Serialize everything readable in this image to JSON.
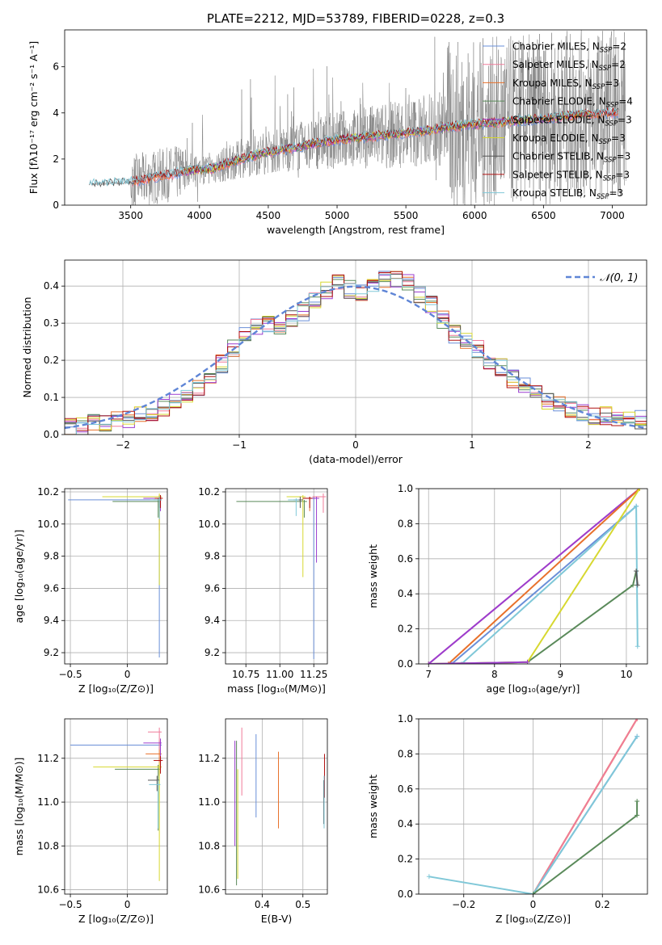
{
  "figure": {
    "title": "PLATE=2212, MJD=53789, FIBERID=0228, z=0.3"
  },
  "colors": [
    "#6a8fd8",
    "#f07b9a",
    "#e8702a",
    "#5a8a5a",
    "#9b3dcf",
    "#d7d830",
    "#555555",
    "#b01010",
    "#80c8d8"
  ],
  "chart_data": [
    {
      "id": "spectrum",
      "type": "line",
      "xlabel": "wavelength [Angstrom, rest frame]",
      "ylabel": "Flux [fλ10⁻¹⁷ erg cm⁻² s⁻¹ A⁻¹]",
      "xlim": [
        3020,
        7250
      ],
      "ylim": [
        0,
        7.6
      ],
      "xticks": [
        3500,
        4000,
        4500,
        5000,
        5500,
        6000,
        6500,
        7000
      ],
      "yticks": [
        0,
        2,
        4,
        6
      ],
      "grid": false,
      "legend_position": "top-right",
      "legend": [
        {
          "label": "Chabrier MILES, N_SSP=2",
          "color": "#6a8fd8"
        },
        {
          "label": "Salpeter MILES, N_SSP=2",
          "color": "#f07b9a"
        },
        {
          "label": "Kroupa MILES, N_SSP=3",
          "color": "#e8702a"
        },
        {
          "label": "Chabrier ELODIE, N_SSP=4",
          "color": "#5a8a5a"
        },
        {
          "label": "Salpeter ELODIE, N_SSP=3",
          "color": "#9b3dcf"
        },
        {
          "label": "Kroupa ELODIE, N_SSP=3",
          "color": "#d7d830"
        },
        {
          "label": "Chabrier STELIB, N_SSP=3",
          "color": "#555555"
        },
        {
          "label": "Salpeter STELIB, N_SSP=3",
          "color": "#b01010"
        },
        {
          "label": "Kroupa STELIB, N_SSP=3",
          "color": "#80c8d8"
        }
      ],
      "model_trend": {
        "x": [
          3200,
          3500,
          3750,
          3950,
          4100,
          4300,
          4500,
          4700,
          4900,
          5100,
          5300,
          5600,
          5900,
          6200,
          6500,
          6800,
          7000
        ],
        "y": [
          0.9,
          1.0,
          1.3,
          1.5,
          1.6,
          2.0,
          2.3,
          2.5,
          2.75,
          2.9,
          3.0,
          3.2,
          3.45,
          3.6,
          3.75,
          3.95,
          4.0
        ]
      }
    },
    {
      "id": "residuals",
      "type": "line",
      "xlabel": "(data-model)/error",
      "ylabel": "Normed distribution",
      "xlim": [
        -2.5,
        2.5
      ],
      "ylim": [
        0,
        0.47
      ],
      "xticks": [
        -2,
        -1,
        0,
        1,
        2
      ],
      "yticks": [
        0.0,
        0.1,
        0.2,
        0.3,
        0.4
      ],
      "grid": true,
      "legend_position": "top-right",
      "legend": [
        {
          "label": "𝒩(0, 1)",
          "color": "#5f85d6"
        }
      ],
      "bin_edges_start": -2.5,
      "bin_width": 0.1,
      "histogram_base": [
        0.02,
        0.02,
        0.03,
        0.03,
        0.04,
        0.04,
        0.05,
        0.06,
        0.07,
        0.09,
        0.11,
        0.13,
        0.16,
        0.19,
        0.23,
        0.27,
        0.29,
        0.3,
        0.29,
        0.31,
        0.33,
        0.36,
        0.39,
        0.41,
        0.39,
        0.38,
        0.4,
        0.42,
        0.42,
        0.41,
        0.38,
        0.35,
        0.31,
        0.27,
        0.25,
        0.23,
        0.2,
        0.18,
        0.15,
        0.13,
        0.11,
        0.09,
        0.08,
        0.07,
        0.06,
        0.05,
        0.05,
        0.04,
        0.04,
        0.04
      ],
      "normal_curve": "N(0,1)"
    },
    {
      "id": "age-vs-Z",
      "type": "scatter",
      "xlabel": "Z [log₁₀(Z/Z⊙)]",
      "ylabel": "age  [log₁₀(age/yr)]",
      "xlim": [
        -0.55,
        0.35
      ],
      "ylim": [
        9.13,
        10.22
      ],
      "xticks": [
        -0.5,
        0.0
      ],
      "yticks": [
        9.2,
        9.4,
        9.6,
        9.8,
        10.0,
        10.2
      ],
      "grid": true,
      "points": [
        {
          "x": 0.28,
          "y": 10.15,
          "xerr": [
            0.8,
            0.02
          ],
          "yerr": [
            0.98,
            0.02
          ],
          "color": "#6a8fd8"
        },
        {
          "x": 0.28,
          "y": 10.17,
          "xerr": [
            0.1,
            0.02
          ],
          "yerr": [
            0.05,
            0.01
          ],
          "color": "#f07b9a"
        },
        {
          "x": 0.28,
          "y": 10.16,
          "xerr": [
            0.12,
            0.02
          ],
          "yerr": [
            0.2,
            0.02
          ],
          "color": "#e8702a"
        },
        {
          "x": 0.27,
          "y": 10.14,
          "xerr": [
            0.4,
            0.02
          ],
          "yerr": [
            0.1,
            0.02
          ],
          "color": "#5a8a5a"
        },
        {
          "x": 0.29,
          "y": 10.16,
          "xerr": [
            0.15,
            0.01
          ],
          "yerr": [
            0.08,
            0.01
          ],
          "color": "#9b3dcf"
        },
        {
          "x": 0.28,
          "y": 10.17,
          "xerr": [
            0.5,
            0.02
          ],
          "yerr": [
            0.55,
            0.02
          ],
          "color": "#d7d830"
        },
        {
          "x": 0.28,
          "y": 10.15,
          "xerr": [
            0.05,
            0.02
          ],
          "yerr": [
            0.05,
            0.02
          ],
          "color": "#555555"
        },
        {
          "x": 0.29,
          "y": 10.16,
          "xerr": [
            0.05,
            0.02
          ],
          "yerr": [
            0.06,
            0.02
          ],
          "color": "#b01010"
        },
        {
          "x": 0.28,
          "y": 10.15,
          "xerr": [
            0.08,
            0.02
          ],
          "yerr": [
            0.12,
            0.02
          ],
          "color": "#80c8d8"
        }
      ]
    },
    {
      "id": "age-vs-mass",
      "type": "scatter",
      "xlabel": "mass [log₁₀(M/M⊙)]",
      "ylabel": "",
      "xlim": [
        10.6,
        11.35
      ],
      "ylim": [
        9.13,
        10.22
      ],
      "xticks": [
        10.75,
        11.0,
        11.25
      ],
      "xticklabels": [
        "10.75",
        "11.00",
        "11.25"
      ],
      "yticks": [
        9.2,
        9.4,
        9.6,
        9.8,
        10.0,
        10.2
      ],
      "grid": true,
      "points": [
        {
          "x": 11.25,
          "y": 10.16,
          "xerr": [
            0.02,
            0.01
          ],
          "yerr": [
            1.0,
            0.01
          ],
          "color": "#6a8fd8"
        },
        {
          "x": 11.32,
          "y": 10.17,
          "xerr": [
            0.08,
            0.02
          ],
          "yerr": [
            0.1,
            0.02
          ],
          "color": "#f07b9a"
        },
        {
          "x": 11.22,
          "y": 10.16,
          "xerr": [
            0.05,
            0.02
          ],
          "yerr": [
            0.08,
            0.01
          ],
          "color": "#e8702a"
        },
        {
          "x": 11.18,
          "y": 10.14,
          "xerr": [
            0.5,
            0.02
          ],
          "yerr": [
            0.1,
            0.01
          ],
          "color": "#5a8a5a"
        },
        {
          "x": 11.27,
          "y": 10.16,
          "xerr": [
            0.1,
            0.02
          ],
          "yerr": [
            0.4,
            0.01
          ],
          "color": "#9b3dcf"
        },
        {
          "x": 11.17,
          "y": 10.17,
          "xerr": [
            0.12,
            0.02
          ],
          "yerr": [
            0.5,
            0.01
          ],
          "color": "#d7d830"
        },
        {
          "x": 11.15,
          "y": 10.15,
          "xerr": [
            0.05,
            0.02
          ],
          "yerr": [
            0.05,
            0.02
          ],
          "color": "#555555"
        },
        {
          "x": 11.22,
          "y": 10.16,
          "xerr": [
            0.05,
            0.02
          ],
          "yerr": [
            0.06,
            0.01
          ],
          "color": "#b01010"
        },
        {
          "x": 11.12,
          "y": 10.15,
          "xerr": [
            0.06,
            0.02
          ],
          "yerr": [
            0.1,
            0.01
          ],
          "color": "#80c8d8"
        }
      ]
    },
    {
      "id": "cumulative-weight-vs-age",
      "type": "line",
      "xlabel": "age  [log₁₀(age/yr)]",
      "ylabel": "mass weight",
      "xlim": [
        6.85,
        10.32
      ],
      "ylim": [
        0,
        1.0
      ],
      "xticks": [
        7,
        8,
        9,
        10
      ],
      "yticks": [
        0.0,
        0.2,
        0.4,
        0.6,
        0.8,
        1.0
      ],
      "grid": true,
      "series": [
        {
          "color": "#f07b9a",
          "x": [
            7.0,
            10.2
          ],
          "y": [
            0.0,
            1.0
          ]
        },
        {
          "color": "#9b3dcf",
          "x": [
            7.0,
            10.2
          ],
          "y": [
            0.0,
            1.0
          ]
        },
        {
          "color": "#e8702a",
          "x": [
            7.3,
            10.2
          ],
          "y": [
            0.0,
            1.0
          ]
        },
        {
          "color": "#6a8fd8",
          "x": [
            7.35,
            10.15
          ],
          "y": [
            0.0,
            0.9
          ]
        },
        {
          "color": "#80c8d8",
          "x": [
            7.5,
            10.15,
            10.17
          ],
          "y": [
            0.0,
            0.9,
            0.1
          ]
        },
        {
          "color": "#5a8a5a",
          "x": [
            7.0,
            8.5,
            10.1,
            10.15
          ],
          "y": [
            0.0,
            0.01,
            0.45,
            0.53
          ]
        },
        {
          "color": "#d7d830",
          "x": [
            7.0,
            8.5,
            10.2
          ],
          "y": [
            0.0,
            0.01,
            1.0
          ]
        },
        {
          "color": "#9b3dcf",
          "x": [
            7.0,
            8.5
          ],
          "y": [
            0.0,
            0.01
          ]
        },
        {
          "color": "#555555",
          "x": [
            10.15,
            10.17
          ],
          "y": [
            0.53,
            0.45
          ]
        }
      ]
    },
    {
      "id": "mass-vs-Z",
      "type": "scatter",
      "xlabel": "Z [log₁₀(Z/Z⊙)]",
      "ylabel": "mass [log₁₀(M/M⊙)]",
      "xlim": [
        -0.55,
        0.35
      ],
      "ylim": [
        10.58,
        11.38
      ],
      "xticks": [
        -0.5,
        0.0
      ],
      "yticks": [
        10.6,
        10.8,
        11.0,
        11.2
      ],
      "grid": true,
      "points": [
        {
          "x": 0.28,
          "y": 11.26,
          "xerr": [
            0.78,
            0.02
          ],
          "yerr": [
            0.02,
            0.02
          ],
          "color": "#6a8fd8"
        },
        {
          "x": 0.28,
          "y": 11.32,
          "xerr": [
            0.1,
            0.02
          ],
          "yerr": [
            0.08,
            0.02
          ],
          "color": "#f07b9a"
        },
        {
          "x": 0.28,
          "y": 11.22,
          "xerr": [
            0.12,
            0.02
          ],
          "yerr": [
            0.1,
            0.02
          ],
          "color": "#e8702a"
        },
        {
          "x": 0.27,
          "y": 11.15,
          "xerr": [
            0.38,
            0.02
          ],
          "yerr": [
            0.28,
            0.02
          ],
          "color": "#5a8a5a"
        },
        {
          "x": 0.29,
          "y": 11.27,
          "xerr": [
            0.15,
            0.01
          ],
          "yerr": [
            0.12,
            0.02
          ],
          "color": "#9b3dcf"
        },
        {
          "x": 0.28,
          "y": 11.16,
          "xerr": [
            0.58,
            0.02
          ],
          "yerr": [
            0.52,
            0.02
          ],
          "color": "#d7d830"
        },
        {
          "x": 0.26,
          "y": 11.1,
          "xerr": [
            0.08,
            0.02
          ],
          "yerr": [
            0.05,
            0.02
          ],
          "color": "#555555"
        },
        {
          "x": 0.29,
          "y": 11.19,
          "xerr": [
            0.06,
            0.02
          ],
          "yerr": [
            0.06,
            0.02
          ],
          "color": "#b01010"
        },
        {
          "x": 0.27,
          "y": 11.08,
          "xerr": [
            0.08,
            0.02
          ],
          "yerr": [
            0.2,
            0.02
          ],
          "color": "#80c8d8"
        }
      ]
    },
    {
      "id": "mass-vs-EBV",
      "type": "scatter",
      "xlabel": "E(B-V)",
      "ylabel": "",
      "xlim": [
        0.31,
        0.56
      ],
      "ylim": [
        10.58,
        11.38
      ],
      "xticks": [
        0.4,
        0.5
      ],
      "yticks": [
        10.6,
        10.8,
        11.0,
        11.2
      ],
      "grid": true,
      "points": [
        {
          "x": 0.385,
          "y": 11.12,
          "yerr": [
            0.19,
            0.19
          ],
          "color": "#6a8fd8"
        },
        {
          "x": 0.35,
          "y": 11.19,
          "yerr": [
            0.16,
            0.15
          ],
          "color": "#f07b9a"
        },
        {
          "x": 0.44,
          "y": 11.06,
          "yerr": [
            0.18,
            0.17
          ],
          "color": "#e8702a"
        },
        {
          "x": 0.337,
          "y": 10.95,
          "yerr": [
            0.33,
            0.33
          ],
          "color": "#5a8a5a"
        },
        {
          "x": 0.333,
          "y": 11.03,
          "yerr": [
            0.23,
            0.25
          ],
          "color": "#9b3dcf"
        },
        {
          "x": 0.34,
          "y": 10.9,
          "yerr": [
            0.25,
            0.25
          ],
          "color": "#d7d830"
        },
        {
          "x": 0.551,
          "y": 11.0,
          "yerr": [
            0.1,
            0.1
          ],
          "color": "#555555"
        },
        {
          "x": 0.553,
          "y": 11.12,
          "yerr": [
            0.1,
            0.1
          ],
          "color": "#b01010"
        },
        {
          "x": 0.552,
          "y": 11.0,
          "yerr": [
            0.12,
            0.12
          ],
          "color": "#80c8d8"
        }
      ]
    },
    {
      "id": "cumulative-weight-vs-Z",
      "type": "line",
      "xlabel": "Z [log₁₀(Z/Z⊙)]",
      "ylabel": "mass weight",
      "xlim": [
        -0.33,
        0.33
      ],
      "ylim": [
        0,
        1.0
      ],
      "xticks": [
        -0.2,
        0.0,
        0.2
      ],
      "yticks": [
        0.0,
        0.2,
        0.4,
        0.6,
        0.8,
        1.0
      ],
      "grid": true,
      "series": [
        {
          "color": "#d7d830",
          "x": [
            0.0,
            0.3
          ],
          "y": [
            0.0,
            1.0
          ]
        },
        {
          "color": "#e8702a",
          "x": [
            0.0,
            0.3
          ],
          "y": [
            0.0,
            1.0
          ]
        },
        {
          "color": "#f07b9a",
          "x": [
            0.0,
            0.3
          ],
          "y": [
            0.0,
            1.0
          ]
        },
        {
          "color": "#6a8fd8",
          "x": [
            0.0,
            0.3
          ],
          "y": [
            0.0,
            0.9
          ]
        },
        {
          "color": "#80c8d8",
          "x": [
            -0.3,
            0.0,
            0.3
          ],
          "y": [
            0.1,
            0.0,
            0.9
          ]
        },
        {
          "color": "#5a8a5a",
          "x": [
            0.0,
            0.3,
            0.3
          ],
          "y": [
            0.0,
            0.45,
            0.53
          ]
        }
      ]
    }
  ]
}
